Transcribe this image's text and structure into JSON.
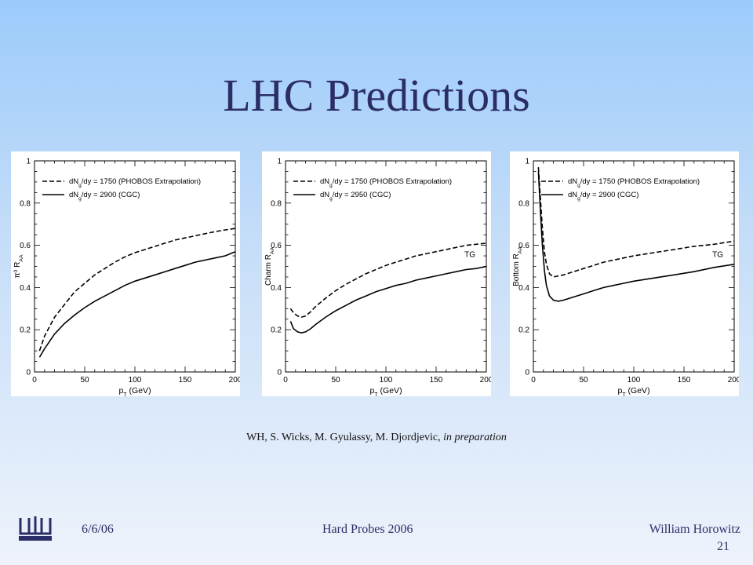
{
  "slide": {
    "title": "LHC Predictions",
    "citation_authors": "WH, S. Wicks, M. Gyulassy, M. Djordjevic, ",
    "citation_status": "in preparation",
    "footer": {
      "date": "6/6/06",
      "event": "Hard Probes 2006",
      "author": "William Horowitz",
      "page": "21",
      "logo_icon": "columbia-crown-icon"
    }
  },
  "chart_data": [
    {
      "type": "line",
      "ylabel": "π⁰ R_AA",
      "xlabel": "p_T (GeV)",
      "xlim": [
        0,
        200
      ],
      "ylim": [
        0,
        1
      ],
      "xticks": [
        "0",
        "50",
        "100",
        "150",
        "200"
      ],
      "yticks": [
        "0",
        "0.2",
        "0.4",
        "0.6",
        "0.8",
        "1"
      ],
      "annotation": "",
      "legend": [
        "dN_g/dy = 1750 (PHOBOS Extrapolation)",
        "dN_g/dy = 2900 (CGC)"
      ],
      "series": [
        {
          "name": "dN_g/dy = 1750 (PHOBOS Extrapolation)",
          "style": "dashed",
          "x": [
            5,
            10,
            20,
            30,
            40,
            50,
            60,
            70,
            80,
            90,
            100,
            110,
            120,
            130,
            140,
            150,
            160,
            170,
            180,
            190,
            200
          ],
          "y": [
            0.1,
            0.17,
            0.26,
            0.32,
            0.38,
            0.42,
            0.46,
            0.49,
            0.52,
            0.545,
            0.565,
            0.58,
            0.595,
            0.61,
            0.625,
            0.635,
            0.645,
            0.655,
            0.665,
            0.673,
            0.68
          ]
        },
        {
          "name": "dN_g/dy = 2900 (CGC)",
          "style": "solid",
          "x": [
            5,
            10,
            20,
            30,
            40,
            50,
            60,
            70,
            80,
            90,
            100,
            110,
            120,
            130,
            140,
            150,
            160,
            170,
            180,
            190,
            200
          ],
          "y": [
            0.07,
            0.11,
            0.18,
            0.23,
            0.27,
            0.305,
            0.335,
            0.36,
            0.385,
            0.41,
            0.43,
            0.445,
            0.46,
            0.475,
            0.49,
            0.505,
            0.52,
            0.53,
            0.54,
            0.55,
            0.57
          ]
        }
      ]
    },
    {
      "type": "line",
      "ylabel": "Charm R_AA",
      "xlabel": "p_T (GeV)",
      "xlim": [
        0,
        200
      ],
      "ylim": [
        0,
        1
      ],
      "xticks": [
        "0",
        "50",
        "100",
        "150",
        "200"
      ],
      "yticks": [
        "0",
        "0.2",
        "0.4",
        "0.6",
        "0.8",
        "1"
      ],
      "annotation": "TG",
      "legend": [
        "dN_g/dy = 1750 (PHOBOS Extrapolation)",
        "dN_g/dy = 2950 (CGC)"
      ],
      "series": [
        {
          "name": "dN_g/dy = 1750 (PHOBOS Extrapolation)",
          "style": "dashed",
          "x": [
            5,
            8,
            12,
            16,
            20,
            25,
            30,
            40,
            50,
            60,
            70,
            80,
            90,
            100,
            110,
            120,
            130,
            140,
            150,
            160,
            170,
            180,
            190,
            200
          ],
          "y": [
            0.3,
            0.28,
            0.265,
            0.26,
            0.265,
            0.285,
            0.31,
            0.35,
            0.385,
            0.415,
            0.44,
            0.465,
            0.485,
            0.505,
            0.52,
            0.535,
            0.55,
            0.56,
            0.57,
            0.58,
            0.59,
            0.6,
            0.605,
            0.61
          ]
        },
        {
          "name": "dN_g/dy = 2950 (CGC)",
          "style": "solid",
          "x": [
            5,
            8,
            12,
            16,
            20,
            25,
            30,
            40,
            50,
            60,
            70,
            80,
            90,
            100,
            110,
            120,
            130,
            140,
            150,
            160,
            170,
            180,
            190,
            200
          ],
          "y": [
            0.24,
            0.205,
            0.19,
            0.185,
            0.19,
            0.205,
            0.225,
            0.26,
            0.29,
            0.315,
            0.34,
            0.36,
            0.38,
            0.395,
            0.41,
            0.42,
            0.435,
            0.445,
            0.455,
            0.465,
            0.475,
            0.485,
            0.49,
            0.5
          ]
        }
      ]
    },
    {
      "type": "line",
      "ylabel": "Bottom R_AA",
      "xlabel": "p_T (GeV)",
      "xlim": [
        0,
        200
      ],
      "ylim": [
        0,
        1
      ],
      "xticks": [
        "0",
        "50",
        "100",
        "150",
        "200"
      ],
      "yticks": [
        "0",
        "0.2",
        "0.4",
        "0.6",
        "0.8",
        "1"
      ],
      "annotation": "TG",
      "legend": [
        "dN_g/dy = 1750 (PHOBOS Extrapolation)",
        "dN_g/dy = 2900 (CGC)"
      ],
      "series": [
        {
          "name": "dN_g/dy = 1750 (PHOBOS Extrapolation)",
          "style": "dashed",
          "x": [
            5,
            7,
            9,
            11,
            13,
            16,
            20,
            25,
            30,
            40,
            50,
            60,
            70,
            80,
            90,
            100,
            120,
            140,
            160,
            180,
            200
          ],
          "y": [
            0.97,
            0.82,
            0.68,
            0.57,
            0.51,
            0.465,
            0.45,
            0.455,
            0.46,
            0.475,
            0.49,
            0.505,
            0.52,
            0.53,
            0.54,
            0.55,
            0.565,
            0.58,
            0.595,
            0.605,
            0.62
          ]
        },
        {
          "name": "dN_g/dy = 2900 (CGC)",
          "style": "solid",
          "x": [
            5,
            7,
            9,
            11,
            13,
            16,
            20,
            25,
            30,
            40,
            50,
            60,
            70,
            80,
            90,
            100,
            120,
            140,
            160,
            180,
            200
          ],
          "y": [
            0.95,
            0.76,
            0.6,
            0.48,
            0.41,
            0.36,
            0.34,
            0.335,
            0.34,
            0.355,
            0.37,
            0.385,
            0.4,
            0.41,
            0.42,
            0.43,
            0.445,
            0.46,
            0.475,
            0.495,
            0.51
          ]
        }
      ]
    }
  ]
}
